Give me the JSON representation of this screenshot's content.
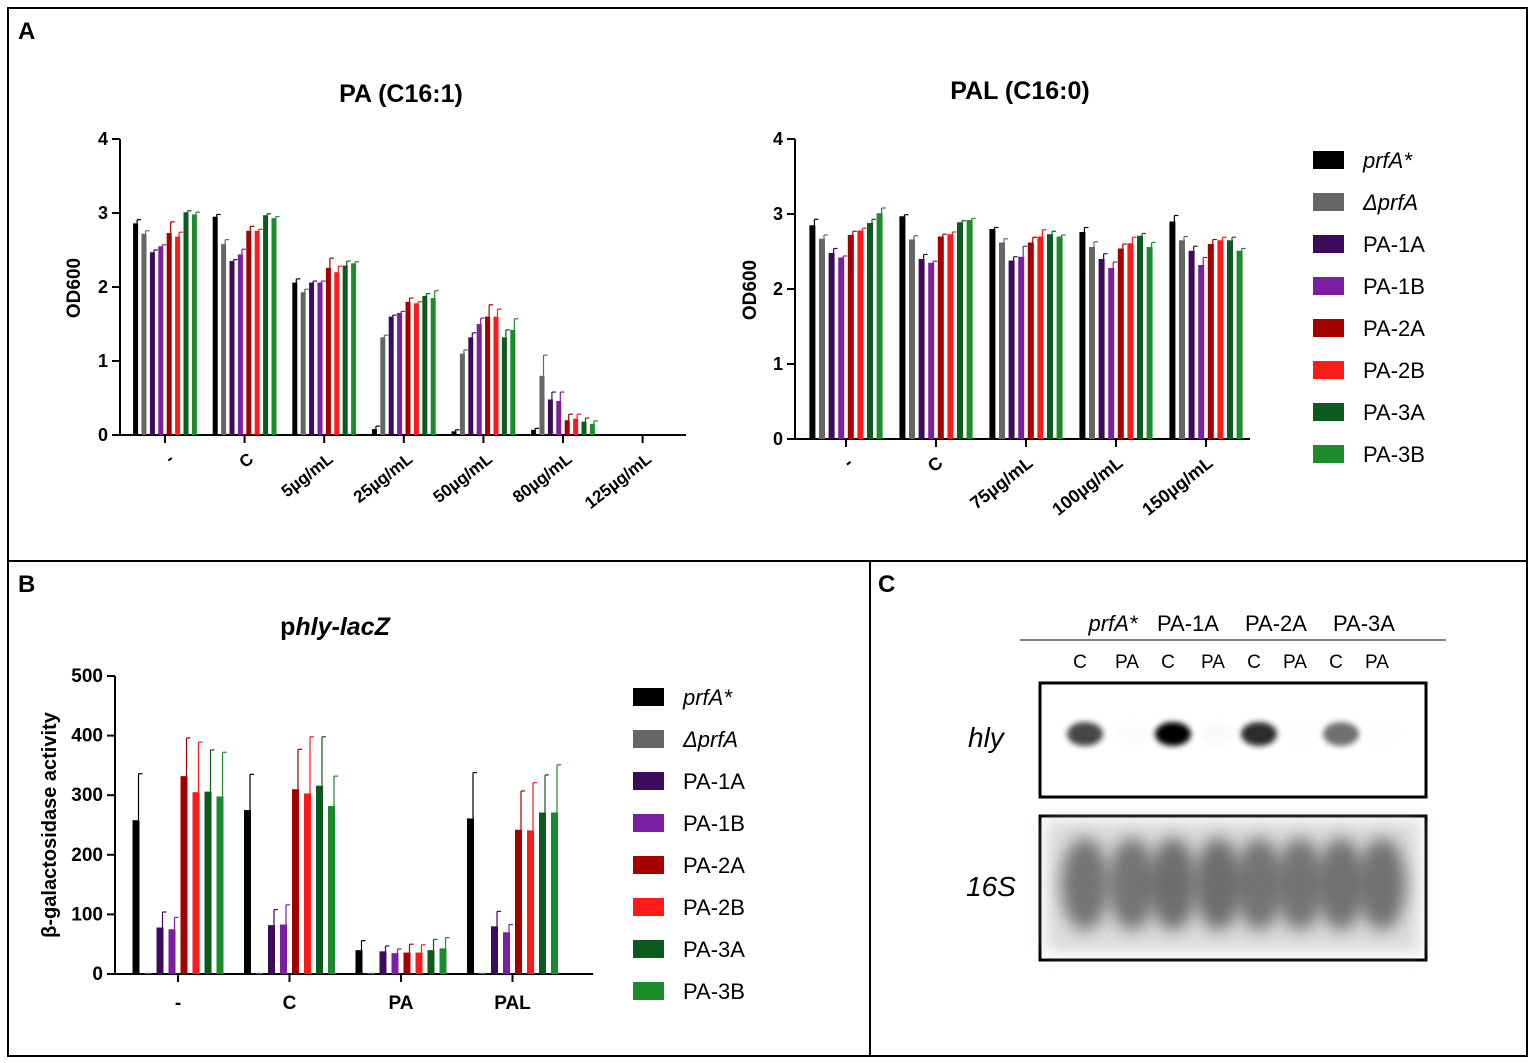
{
  "series_names": [
    "prfA*",
    "ΔprfA",
    "PA-1A",
    "PA-1B",
    "PA-2A",
    "PA-2B",
    "PA-3A",
    "PA-3B"
  ],
  "series_colors": [
    "#000000",
    "#666666",
    "#3d0a5c",
    "#7b1fa2",
    "#a50000",
    "#ff1a1a",
    "#0b5a1e",
    "#1a8c2a"
  ],
  "panels": {
    "a_label": "A",
    "b_label": "B",
    "c_label": "C"
  },
  "chart_data": [
    {
      "id": "A1",
      "type": "bar",
      "title": "PA (C16:1)",
      "ylabel": "OD600",
      "ylim": [
        0,
        4
      ],
      "yticks": [
        0,
        1,
        2,
        3,
        4
      ],
      "categories": [
        "-",
        "C",
        "5µg/mL",
        "25µg/mL",
        "50µg/mL",
        "80µg/mL",
        "125µg/mL"
      ],
      "series": [
        {
          "name": "prfA*",
          "values": [
            2.86,
            2.95,
            2.06,
            0.08,
            0.05,
            0.07,
            0
          ],
          "errors": [
            0.05,
            0.03,
            0.05,
            0.04,
            0.02,
            0.02,
            0
          ]
        },
        {
          "name": "ΔprfA",
          "values": [
            2.72,
            2.58,
            1.93,
            1.32,
            1.1,
            0.8,
            0
          ],
          "errors": [
            0.04,
            0.06,
            0.04,
            0.03,
            0.05,
            0.28,
            0
          ]
        },
        {
          "name": "PA-1A",
          "values": [
            2.47,
            2.35,
            2.06,
            1.6,
            1.32,
            0.48,
            0
          ],
          "errors": [
            0.03,
            0.02,
            0.02,
            0.02,
            0.06,
            0.1,
            0
          ]
        },
        {
          "name": "PA-1B",
          "values": [
            2.55,
            2.44,
            2.06,
            1.65,
            1.5,
            0.46,
            0
          ],
          "errors": [
            0.02,
            0.07,
            0.02,
            0.02,
            0.08,
            0.12,
            0
          ]
        },
        {
          "name": "PA-2A",
          "values": [
            2.73,
            2.76,
            2.26,
            1.8,
            1.6,
            0.2,
            0
          ],
          "errors": [
            0.15,
            0.06,
            0.13,
            0.05,
            0.16,
            0.08,
            0
          ]
        },
        {
          "name": "PA-2B",
          "values": [
            2.68,
            2.76,
            2.2,
            1.78,
            1.6,
            0.22,
            0
          ],
          "errors": [
            0.06,
            0.02,
            0.08,
            0.02,
            0.1,
            0.06,
            0
          ]
        },
        {
          "name": "PA-3A",
          "values": [
            3.01,
            2.97,
            2.29,
            1.88,
            1.32,
            0.18,
            0
          ],
          "errors": [
            0.02,
            0.02,
            0.06,
            0.03,
            0.1,
            0.05,
            0
          ]
        },
        {
          "name": "PA-3B",
          "values": [
            2.98,
            2.93,
            2.32,
            1.85,
            1.42,
            0.15,
            0
          ],
          "errors": [
            0.03,
            0.02,
            0.02,
            0.1,
            0.15,
            0.04,
            0
          ]
        }
      ]
    },
    {
      "id": "A2",
      "type": "bar",
      "title": "PAL (C16:0)",
      "ylabel": "OD600",
      "ylim": [
        0,
        4
      ],
      "yticks": [
        0,
        1,
        2,
        3,
        4
      ],
      "categories": [
        "-",
        "C",
        "75µg/mL",
        "100µg/mL",
        "150µg/mL"
      ],
      "series": [
        {
          "name": "prfA*",
          "values": [
            2.85,
            2.97,
            2.8,
            2.76,
            2.9
          ],
          "errors": [
            0.08,
            0.02,
            0.02,
            0.06,
            0.08
          ]
        },
        {
          "name": "ΔprfA",
          "values": [
            2.67,
            2.66,
            2.62,
            2.56,
            2.65
          ],
          "errors": [
            0.05,
            0.05,
            0.05,
            0.07,
            0.05
          ]
        },
        {
          "name": "PA-1A",
          "values": [
            2.48,
            2.4,
            2.38,
            2.4,
            2.51
          ],
          "errors": [
            0.06,
            0.06,
            0.05,
            0.07,
            0.06
          ]
        },
        {
          "name": "PA-1B",
          "values": [
            2.42,
            2.35,
            2.43,
            2.28,
            2.32
          ],
          "errors": [
            0.02,
            0.02,
            0.14,
            0.08,
            0.1
          ]
        },
        {
          "name": "PA-2A",
          "values": [
            2.72,
            2.7,
            2.62,
            2.54,
            2.6
          ],
          "errors": [
            0.05,
            0.03,
            0.07,
            0.06,
            0.06
          ]
        },
        {
          "name": "PA-2B",
          "values": [
            2.78,
            2.73,
            2.7,
            2.61,
            2.65
          ],
          "errors": [
            0.03,
            0.03,
            0.09,
            0.08,
            0.04
          ]
        },
        {
          "name": "PA-3A",
          "values": [
            2.88,
            2.89,
            2.73,
            2.71,
            2.65
          ],
          "errors": [
            0.05,
            0.02,
            0.04,
            0.03,
            0.04
          ]
        },
        {
          "name": "PA-3B",
          "values": [
            3.01,
            2.92,
            2.7,
            2.56,
            2.51
          ],
          "errors": [
            0.07,
            0.02,
            0.02,
            0.06,
            0.03
          ]
        }
      ]
    },
    {
      "id": "B",
      "type": "bar",
      "title_prefix": "p",
      "title_italic": "hly-lacZ",
      "ylabel": "β-galactosidase activity",
      "ylim": [
        0,
        500
      ],
      "yticks": [
        0,
        100,
        200,
        300,
        400,
        500
      ],
      "categories": [
        "-",
        "C",
        "PA",
        "PAL"
      ],
      "series": [
        {
          "name": "prfA*",
          "values": [
            258,
            275,
            40,
            261
          ],
          "errors": [
            78,
            60,
            16,
            77
          ]
        },
        {
          "name": "ΔprfA",
          "values": [
            2,
            2,
            2,
            2
          ],
          "errors": [
            0,
            0,
            0,
            0
          ]
        },
        {
          "name": "PA-1A",
          "values": [
            78,
            82,
            38,
            80
          ],
          "errors": [
            26,
            26,
            9,
            25
          ]
        },
        {
          "name": "PA-1B",
          "values": [
            75,
            83,
            35,
            70
          ],
          "errors": [
            20,
            33,
            7,
            13
          ]
        },
        {
          "name": "PA-2A",
          "values": [
            332,
            310,
            36,
            242
          ],
          "errors": [
            64,
            67,
            14,
            65
          ]
        },
        {
          "name": "PA-2B",
          "values": [
            305,
            303,
            36,
            241
          ],
          "errors": [
            84,
            95,
            13,
            80
          ]
        },
        {
          "name": "PA-3A",
          "values": [
            306,
            316,
            40,
            271
          ],
          "errors": [
            70,
            82,
            18,
            63
          ]
        },
        {
          "name": "PA-3B",
          "values": [
            298,
            282,
            43,
            271
          ],
          "errors": [
            74,
            50,
            18,
            80
          ]
        }
      ]
    }
  ],
  "blot": {
    "groups": [
      "prfA*",
      "PA-1A",
      "PA-2A",
      "PA-3A"
    ],
    "lanes": [
      "C",
      "PA",
      "C",
      "PA",
      "C",
      "PA",
      "C",
      "PA"
    ],
    "row_labels": [
      "hly",
      "16S"
    ],
    "hly_intensity": [
      0.85,
      0.08,
      1.0,
      0.12,
      0.9,
      0.05,
      0.75,
      0.05
    ],
    "s16_intensity": [
      0.9,
      0.9,
      0.95,
      0.95,
      0.9,
      0.9,
      0.92,
      0.92
    ]
  }
}
